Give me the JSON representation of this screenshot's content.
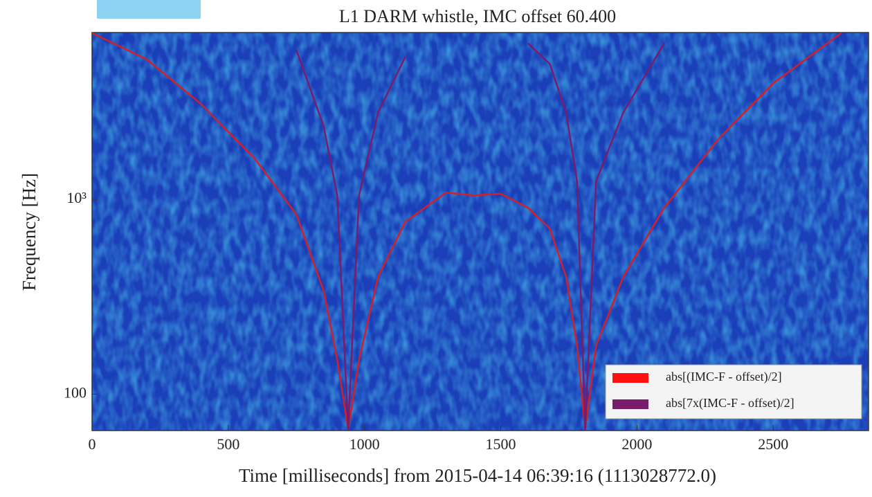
{
  "chart_data": {
    "type": "line",
    "title": "L1 DARM whistle, IMC offset 60.400",
    "xlabel": "Time [milliseconds] from 2015-04-14 06:39:16 (1113028772.0)",
    "ylabel": "Frequency [Hz]",
    "x": [
      0,
      200,
      400,
      600,
      750,
      850,
      900,
      940,
      980,
      1050,
      1150,
      1300,
      1400,
      1500,
      1600,
      1680,
      1740,
      1780,
      1810,
      1850,
      1950,
      2100,
      2300,
      2500,
      2750
    ],
    "series": [
      {
        "name": "abs[(IMC-F - offset)/2]",
        "color": "#d0202a",
        "values": [
          7160,
          5250,
          3090,
          1600,
          836,
          340,
          150,
          66,
          150,
          400,
          770,
          1085,
          1050,
          1070,
          906,
          710,
          400,
          177,
          66,
          177,
          400,
          906,
          2050,
          3950,
          7160
        ]
      },
      {
        "name": "abs[7x(IMC-F - offset)/2]",
        "color": "#7a1c6c",
        "values": [
          null,
          null,
          null,
          null,
          5850,
          2380,
          1050,
          66,
          1050,
          2800,
          5400,
          null,
          null,
          null,
          6340,
          4970,
          2800,
          1240,
          66,
          1240,
          2800,
          6340,
          null,
          null,
          null
        ]
      }
    ],
    "xlim": [
      0,
      2850
    ],
    "xticks": [
      0,
      500,
      1000,
      1500,
      2000,
      2500
    ],
    "ylim": [
      65,
      7200
    ],
    "yticks": [
      100,
      {
        "value": 1000,
        "label": "10³"
      }
    ],
    "ylog": true,
    "legend": "lower right"
  }
}
